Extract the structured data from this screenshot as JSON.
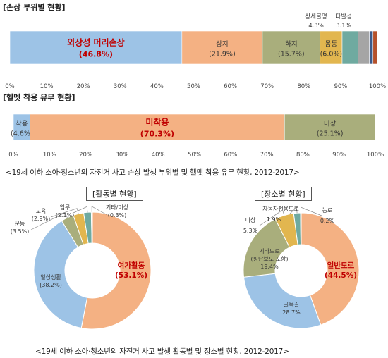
{
  "section1_title": "[손상 부위별 현황]",
  "section2_title": "[헬멧 착용 유무 현황]",
  "caption1": "<19세 이하 소아·청소년의 자전거 사고 손상 발생 부위별 및 헬멧 착용 유무 현황, 2012-2017>",
  "caption2": "<19세 이하 소아·청소년의 자전거 사고 발생 활동별 및 장소별 현황, 2012-2017>",
  "colors": {
    "blue": "#9dc3e6",
    "orange": "#f4b183",
    "olive": "#a9ae7c",
    "gold": "#e2b64f",
    "teal": "#6faaa0",
    "gray": "#a5a5a5",
    "navy": "#3d5a89",
    "rust": "#b5512b",
    "highlight": "#c00000"
  },
  "chart_data": [
    {
      "type": "bar",
      "subtype": "stacked-100-horizontal",
      "title": "[손상 부위별 현황]",
      "xlim": [
        0,
        100
      ],
      "tick_labels": [
        "0%",
        "10%",
        "20%",
        "30%",
        "40%",
        "50%",
        "60%",
        "70%",
        "80%",
        "90%",
        "100%"
      ],
      "series": [
        {
          "name": "외상성 머리손상",
          "value": 46.8,
          "label": "(46.8%)",
          "color": "#9dc3e6",
          "highlight": true
        },
        {
          "name": "상지",
          "value": 21.9,
          "label": "(21.9%)",
          "color": "#f4b183"
        },
        {
          "name": "하지",
          "value": 15.7,
          "label": "(15.7%)",
          "color": "#a9ae7c"
        },
        {
          "name": "몸통",
          "value": 6.0,
          "label": "(6.0%)",
          "color": "#e2b64f"
        },
        {
          "name": "상세불명",
          "value": 4.3,
          "label": "4.3%",
          "color": "#6faaa0"
        },
        {
          "name": "다발성",
          "value": 3.1,
          "label": "3.1%",
          "color": "#a5a5a5"
        },
        {
          "name": "",
          "value": 1.0,
          "label": "",
          "color": "#3d5a89"
        },
        {
          "name": "",
          "value": 1.2,
          "label": "",
          "color": "#b5512b"
        }
      ]
    },
    {
      "type": "bar",
      "subtype": "stacked-100-horizontal",
      "title": "[헬멧 착용 유무 현황]",
      "xlim": [
        0,
        100
      ],
      "tick_labels": [
        "0%",
        "10%",
        "20%",
        "30%",
        "40%",
        "50%",
        "60%",
        "70%",
        "80%",
        "90%",
        "100%"
      ],
      "series": [
        {
          "name": "착용",
          "value": 4.6,
          "label": "(4.6%)",
          "color": "#9dc3e6"
        },
        {
          "name": "미착용",
          "value": 70.3,
          "label": "(70.3%)",
          "color": "#f4b183",
          "highlight": true
        },
        {
          "name": "미상",
          "value": 25.1,
          "label": "(25.1%)",
          "color": "#a9ae7c"
        }
      ]
    },
    {
      "type": "pie",
      "subtype": "donut",
      "title": "[활동별 현황]",
      "slices": [
        {
          "name": "여가활동",
          "value": 53.1,
          "label": "(53.1%)",
          "color": "#f4b183",
          "highlight": true
        },
        {
          "name": "일상생활",
          "value": 38.2,
          "label": "(38.2%)",
          "color": "#9dc3e6"
        },
        {
          "name": "운동",
          "value": 3.5,
          "label": "(3.5%)",
          "color": "#a9ae7c"
        },
        {
          "name": "교육",
          "value": 2.9,
          "label": "(2.9%)",
          "color": "#e2b64f"
        },
        {
          "name": "업무",
          "value": 2.1,
          "label": "(2.1%)",
          "color": "#6faaa0"
        },
        {
          "name": "기타/미상",
          "value": 0.3,
          "label": "(0.3%)",
          "color": "#3d5a89"
        }
      ]
    },
    {
      "type": "pie",
      "subtype": "donut",
      "title": "[장소별 현황]",
      "slices": [
        {
          "name": "일반도로",
          "value": 44.5,
          "label": "(44.5%)",
          "color": "#f4b183",
          "highlight": true
        },
        {
          "name": "골목길",
          "value": 28.7,
          "label": "28.7%",
          "color": "#9dc3e6"
        },
        {
          "name": "기타도로",
          "sublabel": "(횡단보도 포함)",
          "value": 19.4,
          "label": "19.4%",
          "color": "#a9ae7c"
        },
        {
          "name": "미상",
          "value": 5.3,
          "label": "5.3%",
          "color": "#e2b64f"
        },
        {
          "name": "자동차전용도로",
          "value": 1.9,
          "label": "1.9%",
          "color": "#6faaa0"
        },
        {
          "name": "농로",
          "value": 0.2,
          "label": "0.2%",
          "color": "#3d5a89"
        }
      ]
    }
  ]
}
